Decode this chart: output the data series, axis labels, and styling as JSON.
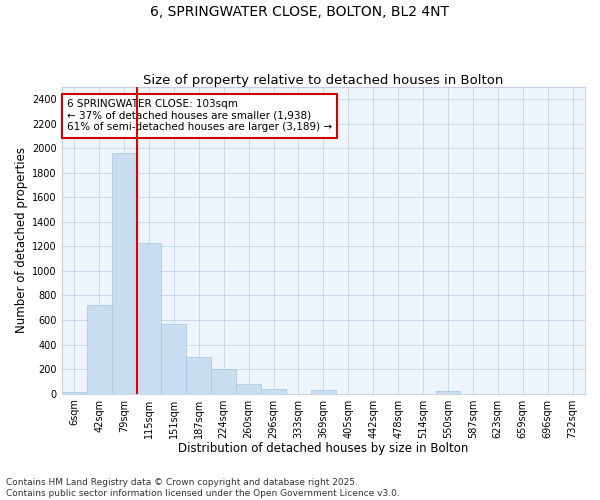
{
  "title_line1": "6, SPRINGWATER CLOSE, BOLTON, BL2 4NT",
  "title_line2": "Size of property relative to detached houses in Bolton",
  "xlabel": "Distribution of detached houses by size in Bolton",
  "ylabel": "Number of detached properties",
  "bar_color": "#c8ddf0",
  "bar_edge_color": "#a8c4e0",
  "background_color": "#eef4fc",
  "grid_color": "#c8d8f0",
  "fig_background": "#ffffff",
  "categories": [
    "6sqm",
    "42sqm",
    "79sqm",
    "115sqm",
    "151sqm",
    "187sqm",
    "224sqm",
    "260sqm",
    "296sqm",
    "333sqm",
    "369sqm",
    "405sqm",
    "442sqm",
    "478sqm",
    "514sqm",
    "550sqm",
    "587sqm",
    "623sqm",
    "659sqm",
    "696sqm",
    "732sqm"
  ],
  "values": [
    10,
    720,
    1960,
    1230,
    570,
    300,
    200,
    80,
    40,
    0,
    30,
    0,
    0,
    0,
    0,
    20,
    0,
    0,
    0,
    0,
    0
  ],
  "ylim": [
    0,
    2500
  ],
  "yticks": [
    0,
    200,
    400,
    600,
    800,
    1000,
    1200,
    1400,
    1600,
    1800,
    2000,
    2200,
    2400
  ],
  "red_line_x": 2.5,
  "annotation_text": "6 SPRINGWATER CLOSE: 103sqm\n← 37% of detached houses are smaller (1,938)\n61% of semi-detached houses are larger (3,189) →",
  "annotation_box_facecolor": "#ffffff",
  "annotation_border_color": "#cc0000",
  "red_line_color": "#dd0000",
  "footer_text": "Contains HM Land Registry data © Crown copyright and database right 2025.\nContains public sector information licensed under the Open Government Licence v3.0.",
  "title_fontsize": 10,
  "subtitle_fontsize": 9.5,
  "axis_label_fontsize": 8.5,
  "tick_fontsize": 7,
  "annotation_fontsize": 7.5,
  "footer_fontsize": 6.5
}
